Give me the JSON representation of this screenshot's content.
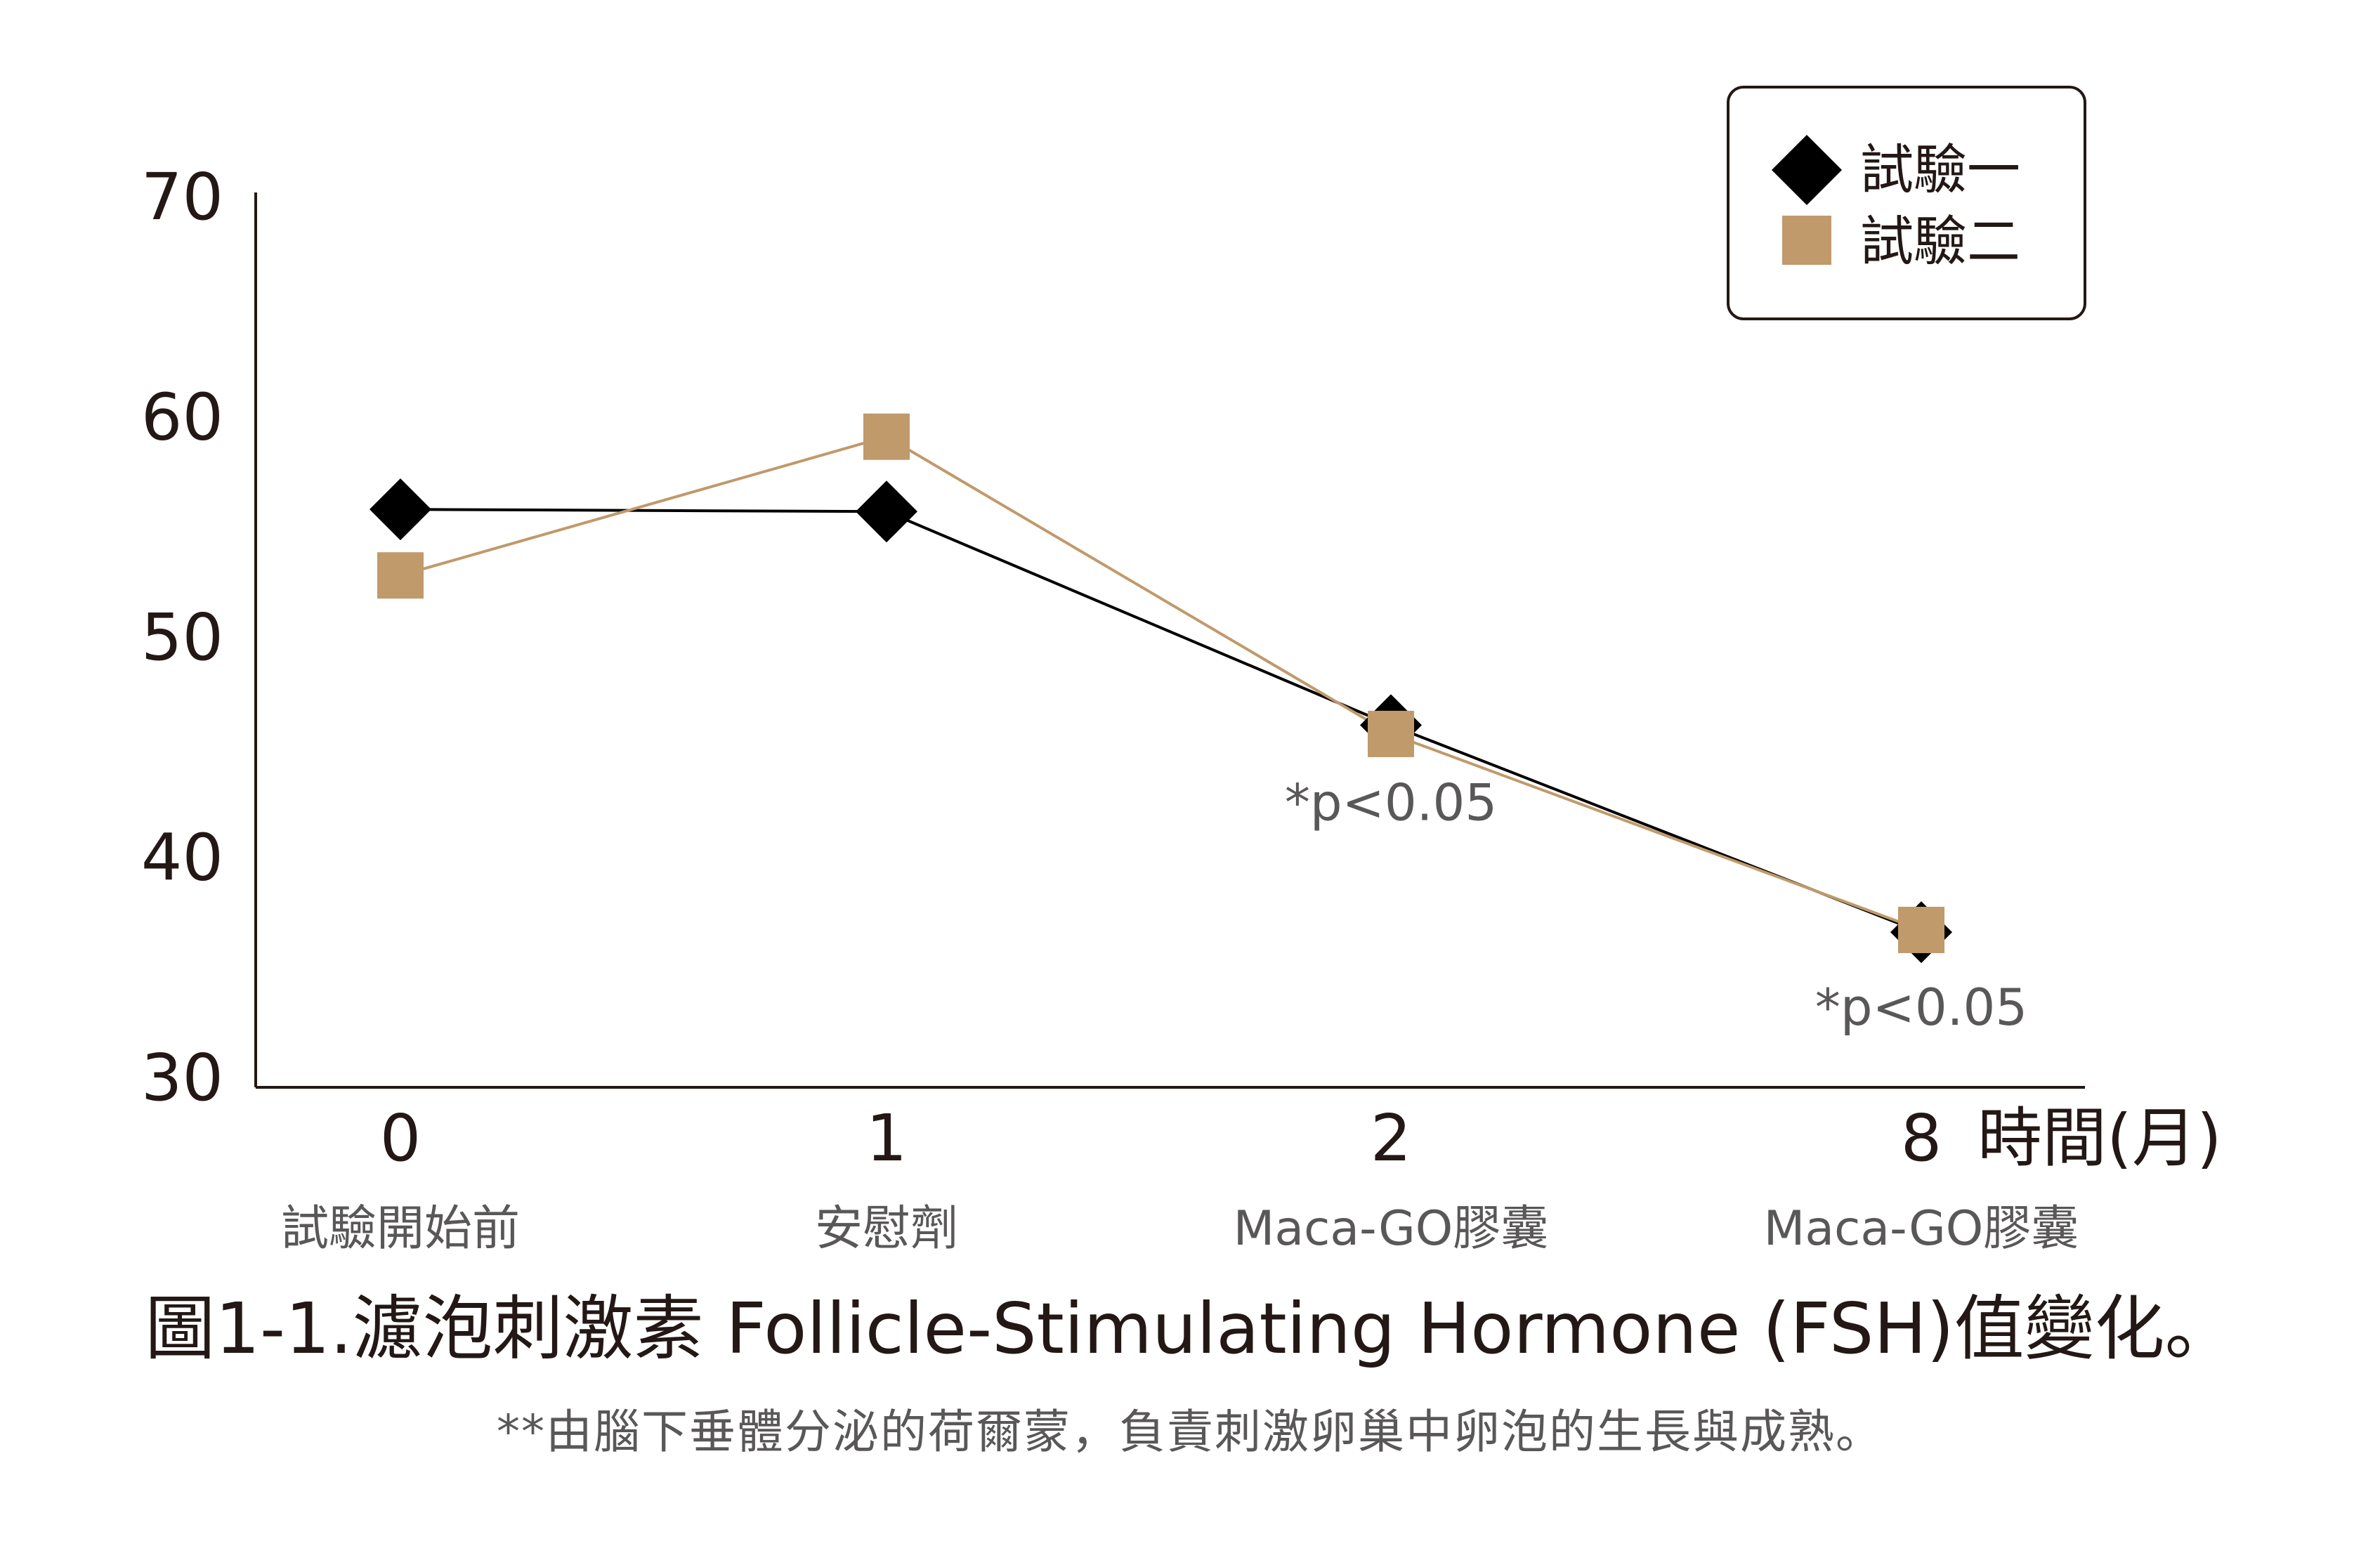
{
  "chart_data": {
    "type": "line",
    "title": "",
    "xlabel": "時間(月)",
    "ylabel": "",
    "ylim": [
      30,
      70
    ],
    "yticks": [
      "70",
      "60",
      "50",
      "40",
      "30"
    ],
    "categories": [
      "0",
      "1",
      "2",
      "8"
    ],
    "category_sublabels": [
      "試驗開始前",
      "安慰劑",
      "Maca-GO膠囊",
      "Maca-GO膠囊"
    ],
    "grid": false,
    "legend_position": "top-right",
    "series": [
      {
        "name": "試驗一",
        "marker": "diamond",
        "color": "#000000",
        "values": [
          55.8,
          55.7,
          46.0,
          36.6
        ]
      },
      {
        "name": "試驗二",
        "marker": "square",
        "color": "#C09A6B",
        "values": [
          52.8,
          59.1,
          45.6,
          36.7
        ]
      }
    ],
    "annotations": [
      {
        "text": "*p<0.05",
        "category": "2"
      },
      {
        "text": "*p<0.05",
        "category": "8"
      }
    ]
  },
  "caption": "圖1-1.濾泡刺激素 Follicle-Stimulating Hormone (FSH)值變化。",
  "footnote": "**由腦下垂體分泌的荷爾蒙，負責刺激卵巢中卵泡的生長與成熟。"
}
